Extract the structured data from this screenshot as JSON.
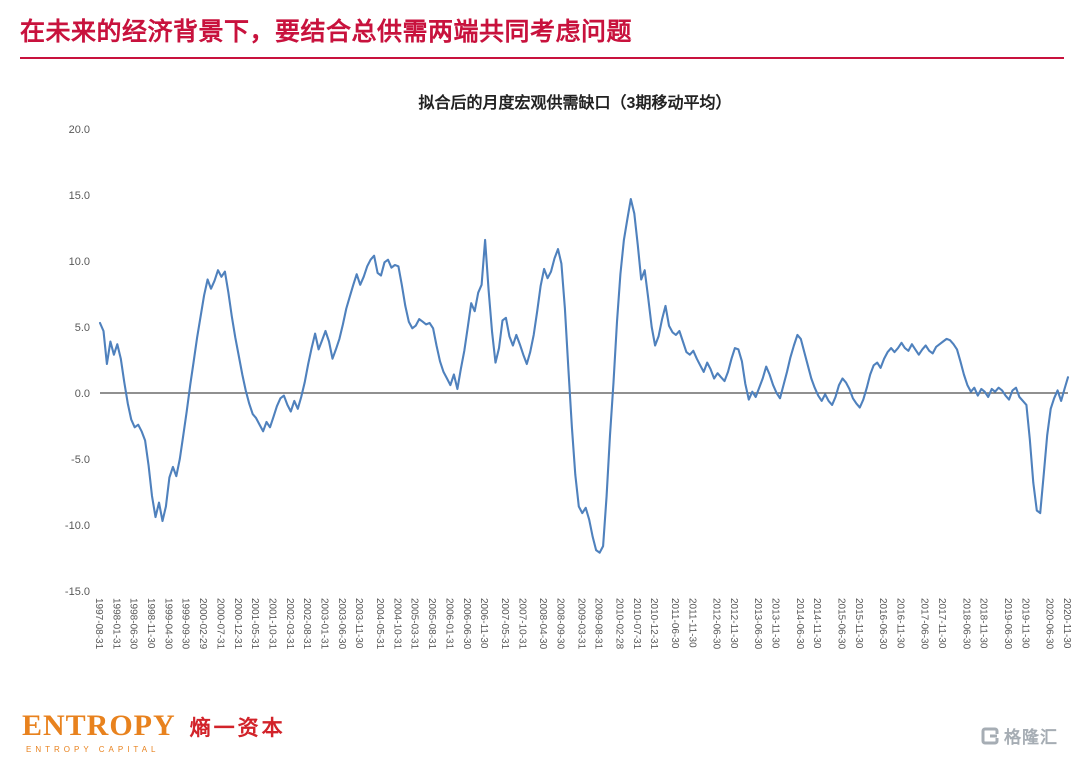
{
  "header": {
    "title": "在未来的经济背景下，要结合总供需两端共同考虑问题",
    "accent_color": "#c8123d"
  },
  "chart_data": {
    "type": "line",
    "title": "拟合后的月度宏观供需缺口（3期移动平均）",
    "ylim": [
      -15,
      20
    ],
    "y_ticks": [
      "20.0",
      "15.0",
      "10.0",
      "5.0",
      "0.0",
      "-5.0",
      "-10.0",
      "-15.0"
    ],
    "grid": false,
    "legend_position": "none",
    "line_color": "#4f81bd",
    "x_monthly_start": "1997-08",
    "x_tick_labels": [
      "1997-08-31",
      "1998-01-31",
      "1998-06-30",
      "1998-11-30",
      "1999-04-30",
      "1999-09-30",
      "2000-02-29",
      "2000-07-31",
      "2000-12-31",
      "2001-05-31",
      "2001-10-31",
      "2002-03-31",
      "2002-08-31",
      "2003-01-31",
      "2003-06-30",
      "2003-11-30",
      "2004-05-31",
      "2004-10-31",
      "2005-03-31",
      "2005-08-31",
      "2006-01-31",
      "2006-06-30",
      "2006-11-30",
      "2007-05-31",
      "2007-10-31",
      "2008-04-30",
      "2008-09-30",
      "2009-03-31",
      "2009-08-31",
      "2010-02-28",
      "2010-07-31",
      "2010-12-31",
      "2011-06-30",
      "2011-11-30",
      "2012-06-30",
      "2012-11-30",
      "2013-06-30",
      "2013-11-30",
      "2014-06-30",
      "2014-11-30",
      "2015-06-30",
      "2015-11-30",
      "2016-06-30",
      "2016-11-30",
      "2017-06-30",
      "2017-11-30",
      "2018-06-30",
      "2018-11-30",
      "2019-06-30",
      "2019-11-30",
      "2020-06-30",
      "2020-11-30"
    ],
    "series": [
      {
        "name": "拟合后的月度宏观供需缺口（3期移动平均）",
        "values": [
          5.3,
          4.7,
          2.2,
          3.9,
          2.9,
          3.7,
          2.6,
          0.8,
          -0.8,
          -2.0,
          -2.6,
          -2.4,
          -2.9,
          -3.6,
          -5.5,
          -7.8,
          -9.4,
          -8.3,
          -9.7,
          -8.6,
          -6.4,
          -5.6,
          -6.3,
          -5.0,
          -3.2,
          -1.4,
          0.6,
          2.4,
          4.2,
          5.8,
          7.4,
          8.6,
          7.9,
          8.5,
          9.3,
          8.8,
          9.2,
          7.6,
          5.8,
          4.2,
          2.8,
          1.4,
          0.2,
          -0.8,
          -1.6,
          -1.9,
          -2.4,
          -2.9,
          -2.2,
          -2.6,
          -1.8,
          -1.0,
          -0.4,
          -0.2,
          -0.9,
          -1.4,
          -0.6,
          -1.2,
          -0.3,
          0.8,
          2.2,
          3.4,
          4.5,
          3.3,
          4.0,
          4.7,
          3.9,
          2.6,
          3.3,
          4.1,
          5.2,
          6.4,
          7.3,
          8.2,
          9.0,
          8.2,
          8.8,
          9.6,
          10.1,
          10.4,
          9.1,
          8.9,
          9.9,
          10.1,
          9.5,
          9.7,
          9.6,
          8.2,
          6.6,
          5.4,
          4.9,
          5.1,
          5.6,
          5.4,
          5.2,
          5.3,
          4.9,
          3.6,
          2.4,
          1.6,
          1.1,
          0.6,
          1.4,
          0.3,
          1.8,
          3.2,
          5.0,
          6.8,
          6.2,
          7.6,
          8.2,
          11.6,
          7.8,
          4.6,
          2.3,
          3.4,
          5.5,
          5.7,
          4.3,
          3.6,
          4.4,
          3.7,
          2.9,
          2.2,
          3.1,
          4.4,
          6.2,
          8.1,
          9.4,
          8.7,
          9.2,
          10.2,
          10.9,
          9.8,
          6.4,
          1.8,
          -2.6,
          -6.2,
          -8.6,
          -9.1,
          -8.7,
          -9.6,
          -10.9,
          -11.9,
          -12.1,
          -11.6,
          -7.8,
          -3.2,
          0.8,
          5.4,
          9.0,
          11.6,
          13.2,
          14.7,
          13.6,
          11.2,
          8.6,
          9.3,
          7.2,
          5.0,
          3.6,
          4.3,
          5.6,
          6.6,
          5.1,
          4.6,
          4.4,
          4.7,
          3.9,
          3.1,
          2.9,
          3.2,
          2.6,
          2.1,
          1.6,
          2.3,
          1.8,
          1.1,
          1.5,
          1.2,
          0.9,
          1.6,
          2.6,
          3.4,
          3.3,
          2.4,
          0.7,
          -0.5,
          0.1,
          -0.3,
          0.4,
          1.1,
          2.0,
          1.4,
          0.6,
          0.0,
          -0.4,
          0.6,
          1.6,
          2.7,
          3.6,
          4.4,
          4.1,
          3.1,
          2.1,
          1.1,
          0.4,
          -0.2,
          -0.6,
          -0.1,
          -0.6,
          -0.9,
          -0.3,
          0.6,
          1.1,
          0.8,
          0.3,
          -0.4,
          -0.8,
          -1.1,
          -0.5,
          0.4,
          1.4,
          2.1,
          2.3,
          1.9,
          2.6,
          3.1,
          3.4,
          3.1,
          3.4,
          3.8,
          3.4,
          3.2,
          3.7,
          3.3,
          2.9,
          3.3,
          3.6,
          3.2,
          3.0,
          3.5,
          3.7,
          3.9,
          4.1,
          4.0,
          3.7,
          3.3,
          2.4,
          1.4,
          0.6,
          0.1,
          0.4,
          -0.2,
          0.3,
          0.1,
          -0.3,
          0.3,
          0.1,
          0.4,
          0.2,
          -0.2,
          -0.5,
          0.2,
          0.4,
          -0.3,
          -0.6,
          -0.9,
          -3.5,
          -6.8,
          -8.9,
          -9.1,
          -6.2,
          -3.2,
          -1.2,
          -0.4,
          0.2,
          -0.6,
          0.3,
          1.2
        ]
      }
    ]
  },
  "footer": {
    "brand": {
      "name": "ENTROPY",
      "cjk": "熵一资本",
      "sub": "ENTROPY CAPITAL"
    },
    "watermark": {
      "text": "格隆汇"
    }
  }
}
